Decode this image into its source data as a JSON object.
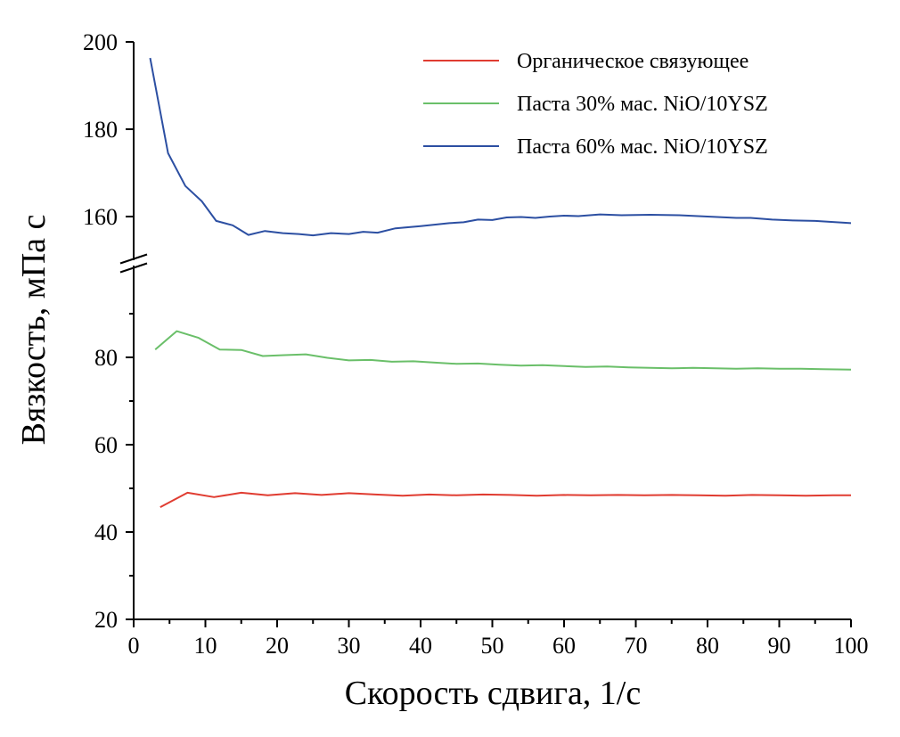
{
  "chart_data": {
    "type": "line",
    "title": "",
    "xlabel": "Скорость сдвига, 1/с",
    "ylabel": "Вязкость, мПа с",
    "xlim": [
      0,
      100
    ],
    "x_ticks": [
      0,
      10,
      20,
      30,
      40,
      50,
      60,
      70,
      80,
      90,
      100
    ],
    "ylim": [
      20,
      200
    ],
    "axis_break": {
      "lower": [
        20,
        100
      ],
      "upper": [
        150,
        200
      ]
    },
    "y_ticks": [
      20,
      40,
      60,
      80,
      160,
      180,
      200
    ],
    "grid": false,
    "legend_position": "top-right",
    "series": [
      {
        "name": "Органическое связующее",
        "color": "#e03c31",
        "x": [
          3.7,
          7.5,
          11.2,
          15,
          18.7,
          22.5,
          26.2,
          30,
          33.7,
          37.5,
          41.2,
          45,
          48.7,
          52.5,
          56.2,
          60,
          63.7,
          67.5,
          71.2,
          75,
          78.7,
          82.5,
          86.2,
          90,
          93.7,
          97.5,
          100
        ],
        "y": [
          45.7,
          49,
          48,
          49,
          48.4,
          48.9,
          48.5,
          48.9,
          48.6,
          48.3,
          48.6,
          48.4,
          48.6,
          48.5,
          48.3,
          48.5,
          48.4,
          48.5,
          48.4,
          48.5,
          48.4,
          48.3,
          48.5,
          48.4,
          48.3,
          48.4,
          48.4
        ]
      },
      {
        "name": "Паста 30% мас. NiO/10YSZ",
        "color": "#6abf69",
        "x": [
          3,
          6,
          9,
          12,
          15,
          18,
          21,
          24,
          27,
          30,
          33,
          36,
          39,
          42,
          45,
          48,
          51,
          54,
          57,
          60,
          63,
          66,
          69,
          72,
          75,
          78,
          81,
          84,
          87,
          90,
          93,
          96,
          100
        ],
        "y": [
          81.8,
          86,
          84.5,
          81.8,
          81.7,
          80.3,
          80.5,
          80.7,
          79.9,
          79.3,
          79.4,
          79,
          79.1,
          78.8,
          78.5,
          78.6,
          78.3,
          78.1,
          78.2,
          78,
          77.8,
          77.9,
          77.7,
          77.6,
          77.5,
          77.6,
          77.5,
          77.4,
          77.5,
          77.4,
          77.4,
          77.3,
          77.2
        ]
      },
      {
        "name": "Паста 60% мас. NiO/10YSZ",
        "color": "#2c4fa2",
        "x": [
          2.3,
          4.8,
          7.2,
          9.5,
          11.5,
          13.8,
          16,
          18.3,
          20.8,
          23,
          25,
          27.5,
          30,
          32,
          34,
          36.5,
          40,
          44,
          46,
          48,
          50,
          52,
          54,
          56,
          58,
          60,
          62,
          65,
          68,
          72,
          76,
          80,
          84,
          86,
          89,
          92,
          95,
          100
        ],
        "y": [
          196.3,
          174.5,
          167,
          163.5,
          159,
          158,
          155.8,
          156.7,
          156.2,
          156,
          155.7,
          156.2,
          156,
          156.5,
          156.3,
          157.3,
          157.8,
          158.5,
          158.7,
          159.3,
          159.2,
          159.8,
          159.9,
          159.7,
          160,
          160.2,
          160.1,
          160.5,
          160.3,
          160.4,
          160.3,
          160,
          159.7,
          159.7,
          159.3,
          159.1,
          159,
          158.5
        ]
      }
    ]
  }
}
